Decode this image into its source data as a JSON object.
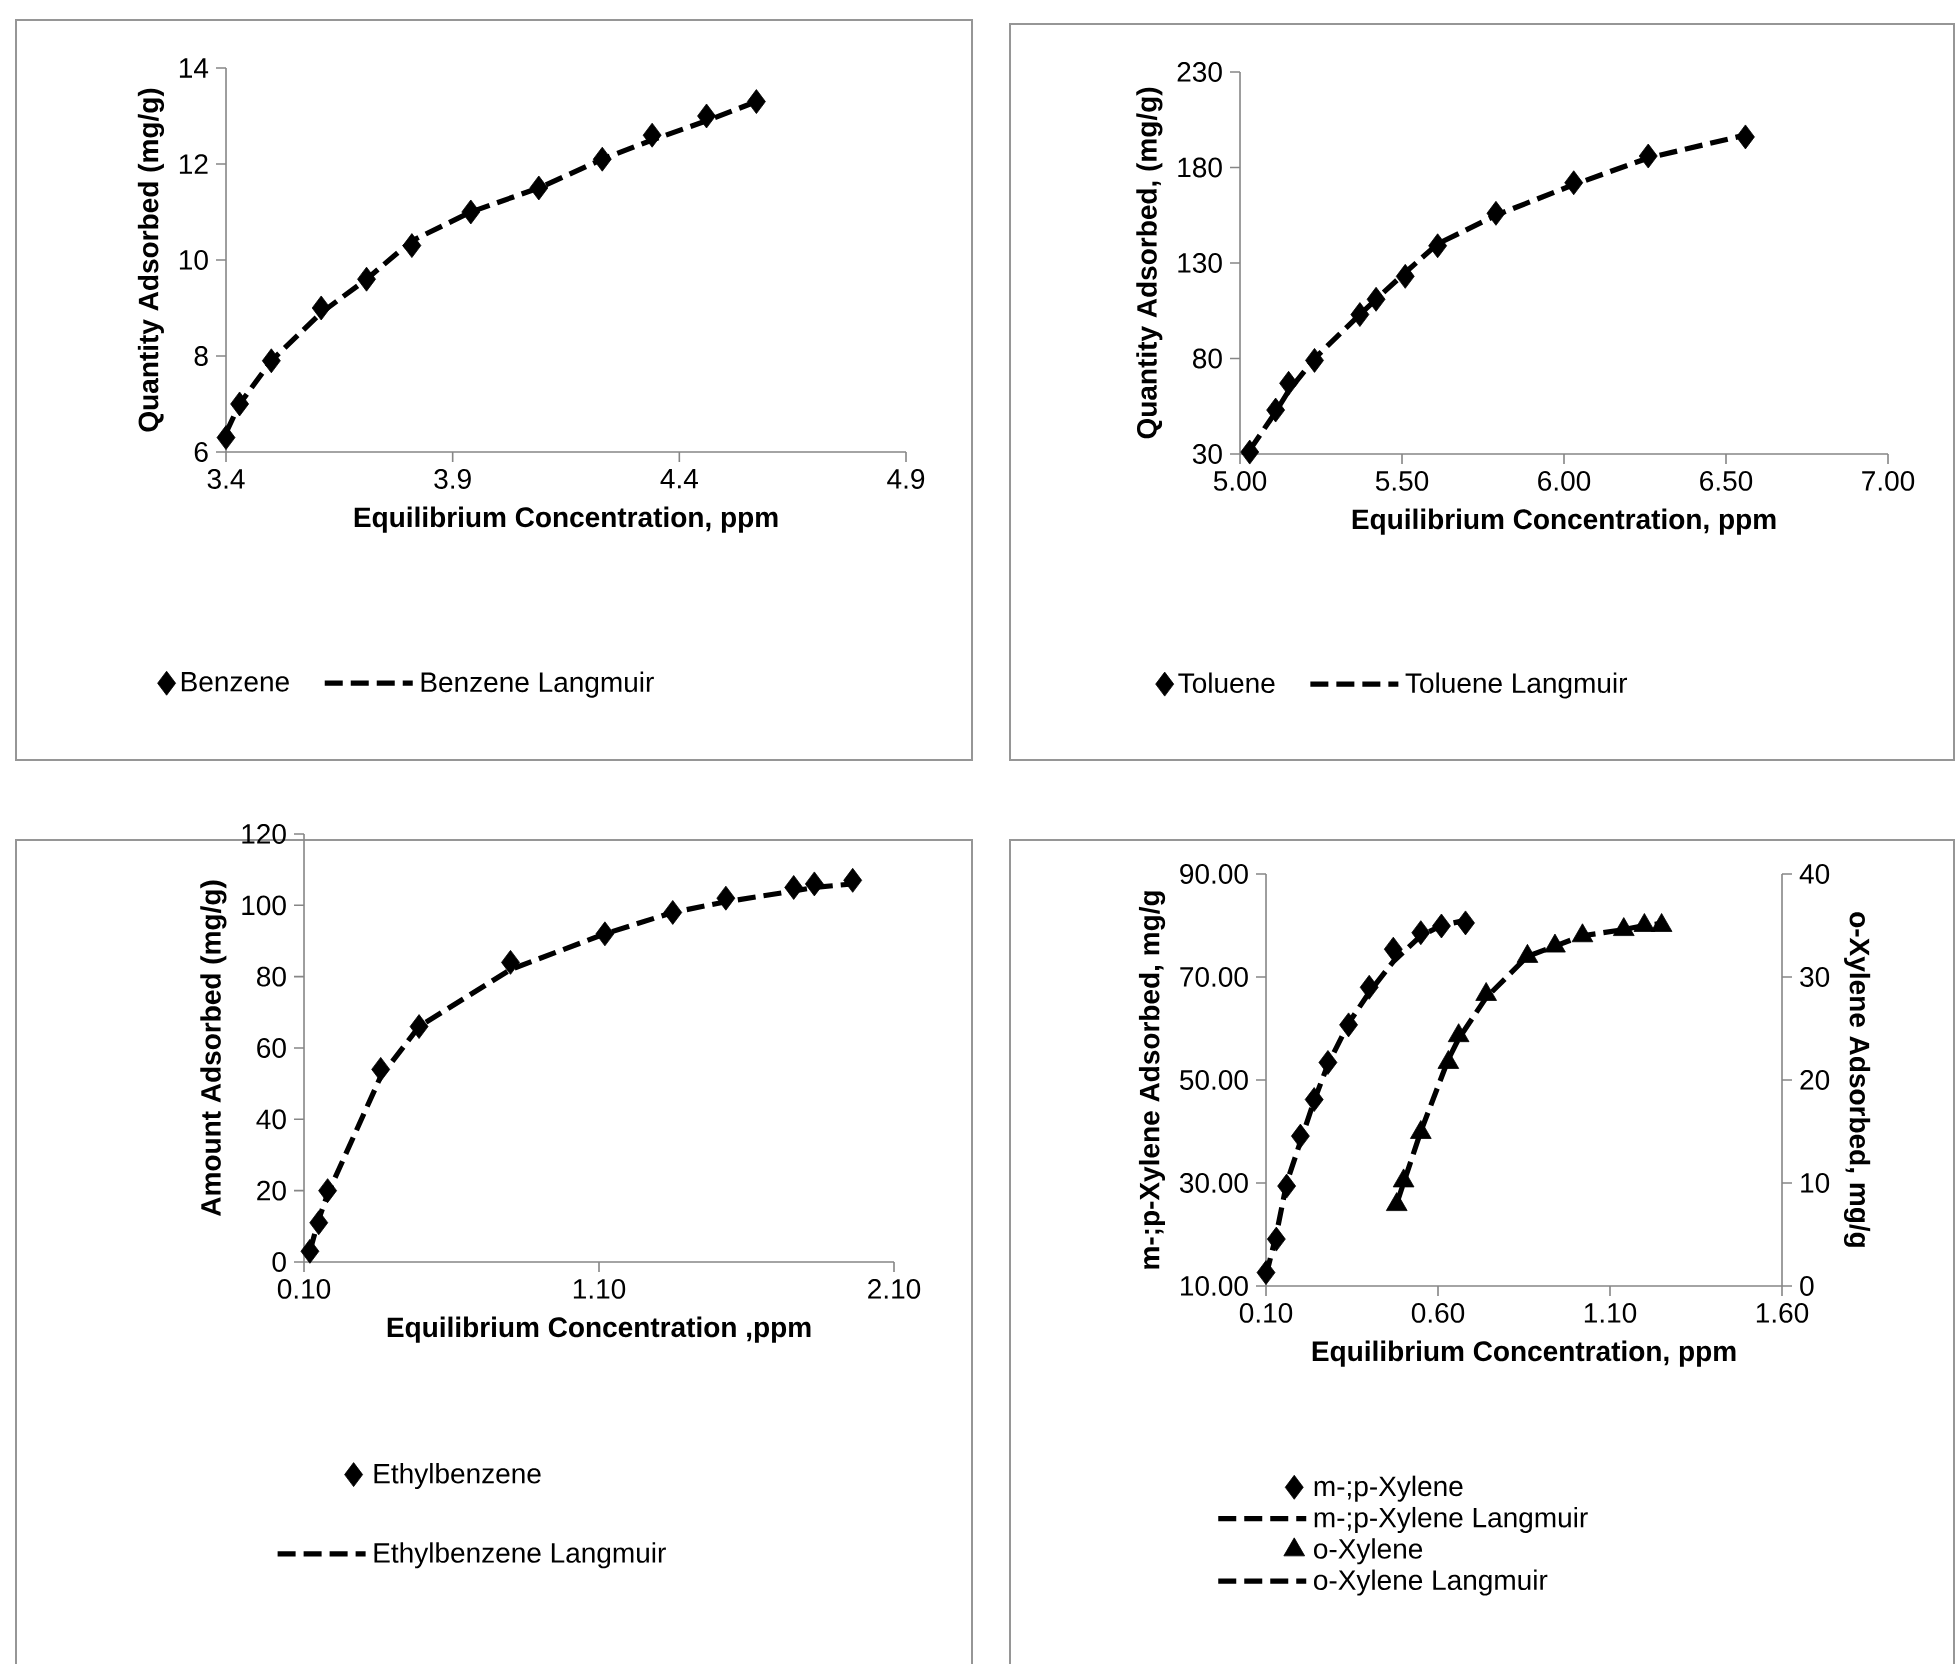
{
  "chart_data": [
    {
      "type": "scatter",
      "xlabel": "Equilibrium Concentration, ppm",
      "ylabel": "Quantity Adsorbed (mg/g)",
      "xlim": [
        3.4,
        4.9
      ],
      "ylim": [
        6,
        14
      ],
      "xticks": [
        3.4,
        3.9,
        4.4,
        4.9
      ],
      "yticks": [
        6,
        8,
        10,
        12,
        14
      ],
      "legend": "bottom",
      "series": [
        {
          "name": "Benzene",
          "marker": "diamond",
          "color": "#000000",
          "x": [
            3.4,
            3.43,
            3.5,
            3.61,
            3.71,
            3.81,
            3.94,
            4.09,
            4.23,
            4.34,
            4.46,
            4.57
          ],
          "values": [
            6.3,
            7.0,
            7.9,
            9.0,
            9.6,
            10.3,
            11.0,
            11.5,
            12.1,
            12.6,
            13.0,
            13.3
          ]
        },
        {
          "name": "Benzene Langmuir",
          "type": "line",
          "marker": "none",
          "line_style": "dashed",
          "color": "#000000",
          "x": [
            3.4,
            3.43,
            3.5,
            3.61,
            3.71,
            3.81,
            3.94,
            4.09,
            4.23,
            4.34,
            4.46,
            4.57
          ],
          "values": [
            6.4,
            7.0,
            7.9,
            8.9,
            9.6,
            10.4,
            11.0,
            11.5,
            12.1,
            12.5,
            12.9,
            13.3
          ]
        }
      ]
    },
    {
      "type": "scatter",
      "xlabel": "Equilibrium Concentration, ppm",
      "ylabel": "Quantity Adsorbed, (mg/g)",
      "xlim": [
        5.0,
        7.0
      ],
      "ylim": [
        30,
        230
      ],
      "xticks": [
        {
          "value": 5.0,
          "label": "5.00"
        },
        {
          "value": 5.5,
          "label": "5.50"
        },
        {
          "value": 6.0,
          "label": "6.00"
        },
        {
          "value": 6.5,
          "label": "6.50"
        },
        {
          "value": 7.0,
          "label": "7.00"
        }
      ],
      "yticks": [
        30,
        80,
        130,
        180,
        230
      ],
      "legend": "bottom",
      "series": [
        {
          "name": "Toluene",
          "marker": "diamond",
          "color": "#000000",
          "x": [
            5.03,
            5.11,
            5.15,
            5.23,
            5.37,
            5.42,
            5.51,
            5.61,
            5.79,
            6.03,
            6.26,
            6.56
          ],
          "values": [
            31,
            53,
            67,
            79,
            103,
            111,
            123,
            139,
            156,
            172,
            186,
            196
          ]
        },
        {
          "name": "Toluene Langmuir",
          "type": "line",
          "marker": "none",
          "line_style": "dashed",
          "color": "#000000",
          "x": [
            5.03,
            5.11,
            5.15,
            5.23,
            5.37,
            5.42,
            5.51,
            5.61,
            5.79,
            6.03,
            6.26,
            6.56
          ],
          "values": [
            32,
            52,
            63,
            80,
            103,
            111,
            125,
            140,
            155,
            171,
            185,
            197
          ]
        }
      ]
    },
    {
      "type": "scatter",
      "xlabel": "Equilibrium Concentration ,ppm",
      "ylabel": "Amount Adsorbed (mg/g)",
      "xlim": [
        0.1,
        2.1
      ],
      "ylim": [
        0,
        120
      ],
      "xticks": [
        {
          "value": 0.1,
          "label": "0.10"
        },
        {
          "value": 1.1,
          "label": "1.10"
        },
        {
          "value": 2.1,
          "label": "2.10"
        }
      ],
      "yticks": [
        0,
        20,
        40,
        60,
        80,
        100,
        120
      ],
      "legend": "bottom",
      "series": [
        {
          "name": "Ethylbenzene",
          "marker": "diamond",
          "color": "#000000",
          "x": [
            0.12,
            0.15,
            0.18,
            0.36,
            0.49,
            0.8,
            1.12,
            1.35,
            1.53,
            1.76,
            1.83,
            1.96
          ],
          "values": [
            3,
            11,
            20,
            54,
            66,
            84,
            92,
            98,
            102,
            105,
            106,
            107
          ]
        },
        {
          "name": "Ethylbenzene Langmuir",
          "type": "line",
          "marker": "none",
          "line_style": "dashed",
          "color": "#000000",
          "x": [
            0.12,
            0.15,
            0.18,
            0.36,
            0.49,
            0.8,
            1.12,
            1.35,
            1.53,
            1.76,
            1.83,
            1.96
          ],
          "values": [
            3,
            12,
            19,
            52,
            66,
            82,
            92,
            98,
            101,
            104,
            105,
            106
          ]
        }
      ]
    },
    {
      "type": "scatter",
      "xlabel": "Equilibrium Concentration, ppm",
      "ylabel": "m-;p-Xylene Adsorbed, mg/g",
      "y2label": "o-Xylene Adsorbed, mg/g",
      "xlim": [
        0.1,
        1.6
      ],
      "ylim": [
        10,
        90
      ],
      "y2lim": [
        0,
        40
      ],
      "xticks": [
        {
          "value": 0.1,
          "label": "0.10"
        },
        {
          "value": 0.6,
          "label": "0.60"
        },
        {
          "value": 1.1,
          "label": "1.10"
        },
        {
          "value": 1.6,
          "label": "1.60"
        }
      ],
      "yticks": [
        {
          "value": 10,
          "label": "10.00"
        },
        {
          "value": 30,
          "label": "30.00"
        },
        {
          "value": 50,
          "label": "50.00"
        },
        {
          "value": 70,
          "label": "70.00"
        },
        {
          "value": 90,
          "label": "90.00"
        }
      ],
      "y2ticks": [
        0,
        10,
        20,
        30,
        40
      ],
      "legend": "bottom",
      "series": [
        {
          "name": "m-;p-Xylene",
          "marker": "diamond",
          "color": "#000000",
          "x": [
            0.1,
            0.13,
            0.16,
            0.2,
            0.24,
            0.28,
            0.34,
            0.4,
            0.47,
            0.55,
            0.61,
            0.68
          ],
          "values": [
            12.6,
            19.1,
            29.4,
            39.1,
            46.2,
            53.4,
            60.7,
            68.0,
            75.4,
            78.6,
            79.9,
            80.5
          ]
        },
        {
          "name": "m-;p-Xylene Langmuir",
          "type": "line",
          "marker": "none",
          "line_style": "dashed",
          "color": "#000000",
          "x": [
            0.1,
            0.13,
            0.16,
            0.2,
            0.24,
            0.28,
            0.34,
            0.4,
            0.47,
            0.55,
            0.61,
            0.68
          ],
          "values": [
            12,
            20,
            30,
            38,
            46,
            53,
            61,
            67,
            73,
            78,
            80,
            81
          ]
        },
        {
          "name": "o-Xylene",
          "marker": "triangle",
          "axis": "y2",
          "color": "#000000",
          "x": [
            0.48,
            0.5,
            0.55,
            0.63,
            0.66,
            0.74,
            0.86,
            0.94,
            1.02,
            1.14,
            1.2,
            1.25
          ],
          "values": [
            7.9,
            10.2,
            14.9,
            21.7,
            24.3,
            28.3,
            32.0,
            33.0,
            34.0,
            34.6,
            35.0,
            35.0
          ]
        },
        {
          "name": "o-Xylene Langmuir",
          "type": "line",
          "marker": "none",
          "line_style": "dashed",
          "axis": "y2",
          "color": "#000000",
          "x": [
            0.48,
            0.5,
            0.55,
            0.63,
            0.66,
            0.74,
            0.86,
            0.94,
            1.02,
            1.14,
            1.2,
            1.25
          ],
          "values": [
            8,
            10,
            15,
            22,
            24,
            28,
            32,
            33,
            34,
            34.6,
            35,
            35.2
          ]
        }
      ]
    }
  ]
}
